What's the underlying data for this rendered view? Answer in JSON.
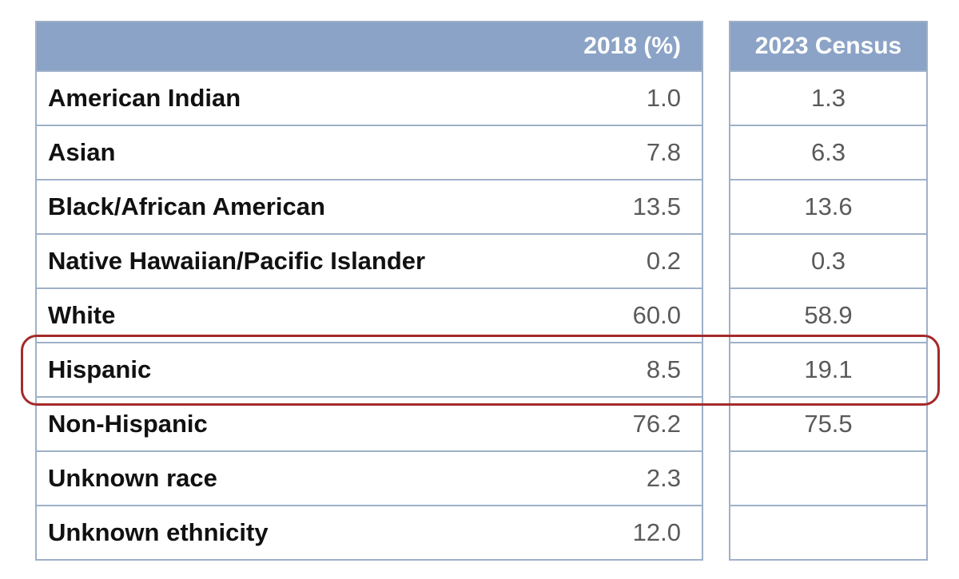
{
  "chart_data": {
    "type": "table",
    "columns": [
      "2018 (%)",
      "2023 Census"
    ],
    "rows": [
      {
        "label": "American Indian",
        "y2018": "1.0",
        "y2023": "1.3"
      },
      {
        "label": "Asian",
        "y2018": "7.8",
        "y2023": "6.3"
      },
      {
        "label": "Black/African American",
        "y2018": "13.5",
        "y2023": "13.6"
      },
      {
        "label": "Native Hawaiian/Pacific Islander",
        "y2018": "0.2",
        "y2023": "0.3"
      },
      {
        "label": "White",
        "y2018": "60.0",
        "y2023": "58.9"
      },
      {
        "label": "Hispanic",
        "y2018": "8.5",
        "y2023": "19.1"
      },
      {
        "label": "Non-Hispanic",
        "y2018": "76.2",
        "y2023": "75.5"
      },
      {
        "label": "Unknown race",
        "y2018": "2.3",
        "y2023": ""
      },
      {
        "label": "Unknown ethnicity",
        "y2018": "12.0",
        "y2023": ""
      }
    ],
    "highlighted_row": "Hispanic",
    "colors": {
      "header_bg": "#8ba3c6",
      "border": "#9fb0c8",
      "highlight": "#a52a2a"
    }
  }
}
